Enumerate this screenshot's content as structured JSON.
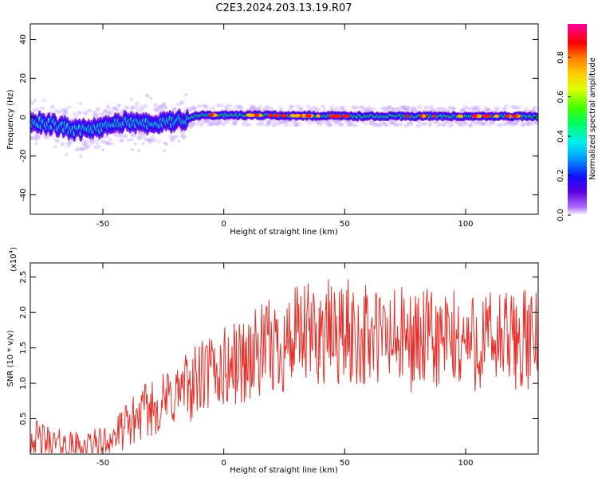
{
  "title": "C2E3.2024.203.13.19.R07",
  "chart_data": [
    {
      "type": "heatmap",
      "xlabel": "Height of straight line (km)",
      "ylabel": "Frequency (Hz)",
      "xlim": [
        -80,
        130
      ],
      "ylim": [
        -50,
        48
      ],
      "xticks": [
        -50,
        0,
        50,
        100
      ],
      "yticks": [
        -40,
        -20,
        0,
        20,
        40
      ],
      "colorbar": {
        "label": "Normalized spectral amplitude",
        "range": [
          0,
          0.97
        ],
        "ticks": [
          0.0,
          0.2,
          0.4,
          0.6,
          0.8
        ],
        "tick_labels": [
          "0.0",
          "0.2",
          "0.4",
          "0.6",
          "0.8"
        ]
      },
      "ridge": {
        "x": [
          -80,
          -70,
          -60,
          -50,
          -40,
          -30,
          -20,
          -10,
          0,
          10,
          50,
          100,
          130
        ],
        "y": [
          -2,
          -4,
          -7,
          -5,
          -2,
          -4,
          -2,
          1,
          1,
          1,
          0.5,
          0.5,
          0.5
        ]
      }
    },
    {
      "type": "line",
      "xlabel": "Height of straight line (km)",
      "ylabel": "SNR (10 * v/v)",
      "scale_label": "(x10",
      "scale_exp": "4",
      "scale_close": ")",
      "xlim": [
        -80,
        130
      ],
      "ylim": [
        0,
        2.7
      ],
      "xticks": [
        -50,
        0,
        50,
        100
      ],
      "yticks": [
        0.5,
        1.0,
        1.5,
        2.0,
        2.5
      ],
      "ytick_labels": [
        "0.5",
        "1.0",
        "1.5",
        "2.0",
        "2.5"
      ],
      "color": "#e8302a",
      "series": [
        {
          "trend_x": [
            -80,
            -70,
            -60,
            -50,
            -45,
            -40,
            -35,
            -30,
            -25,
            -20,
            -15,
            -10,
            -5,
            0,
            10,
            20,
            30,
            40,
            50,
            60,
            80,
            100,
            130
          ],
          "trend_y": [
            0.25,
            0.14,
            0.1,
            0.15,
            0.25,
            0.4,
            0.55,
            0.65,
            0.72,
            0.85,
            0.95,
            1.05,
            1.15,
            1.2,
            1.35,
            1.5,
            1.62,
            1.7,
            1.7,
            1.65,
            1.6,
            1.58,
            1.6
          ]
        }
      ]
    }
  ]
}
